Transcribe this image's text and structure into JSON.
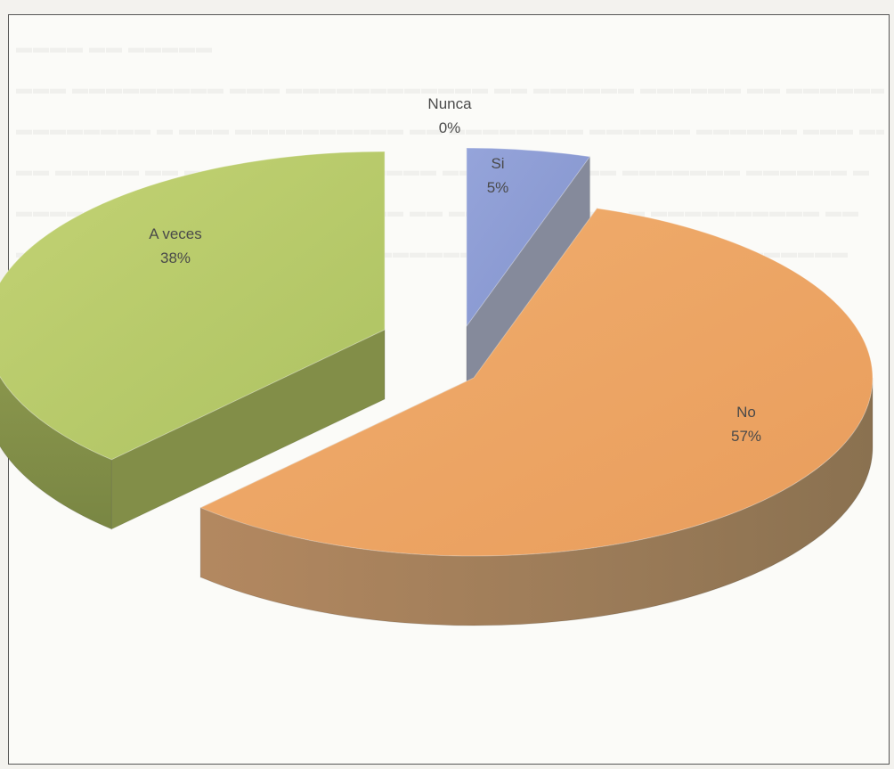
{
  "chart_data": {
    "type": "pie",
    "style": "3d-exploded",
    "slices": [
      {
        "label": "Nunca",
        "value": 0,
        "percent_label": "0%",
        "color": "#8b9bd2"
      },
      {
        "label": "Si",
        "value": 5,
        "percent_label": "5%",
        "color": "#8b9bd2"
      },
      {
        "label": "No",
        "value": 57,
        "percent_label": "57%",
        "color": "#eea766"
      },
      {
        "label": "A veces",
        "value": 38,
        "percent_label": "38%",
        "color": "#b6ca6a"
      }
    ],
    "title": "",
    "legend": "none"
  }
}
